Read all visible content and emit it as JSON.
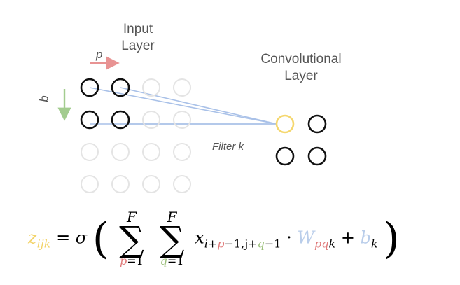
{
  "input_layer": {
    "label": "Input\nLayer",
    "grid_rows": 4,
    "grid_cols": 4,
    "active_rows": 2,
    "active_cols": 2
  },
  "conv_layer": {
    "label": "Convolutional\nLayer",
    "grid_rows": 2,
    "grid_cols": 2
  },
  "filter_label": "Filter k",
  "p_label": "p",
  "q_label": "q",
  "formula": {
    "lhs": "z",
    "lhs_sub": "ijk",
    "equals": "=",
    "sigma": "σ",
    "sum_upper": "F",
    "sum1_lower_var": "p",
    "sum2_lower_var": "q",
    "sum_lower_eq": "=1",
    "x": "x",
    "x_sub_i": "i+",
    "x_sub_p": "p",
    "x_sub_mid": "−1,j+",
    "x_sub_q": "q",
    "x_sub_end": "−1",
    "dot": "·",
    "w": "W",
    "w_sub_pq": "pq",
    "w_sub_k": "k",
    "plus": "+",
    "b": "b",
    "b_sub": "k"
  },
  "colors": {
    "active_node": "#111111",
    "inactive_node": "#e4e4e4",
    "highlight_node": "#f5d76e",
    "connection": "#a9c1e8",
    "p_arrow": "#e89393",
    "q_arrow": "#a3cc8f",
    "z_color": "#f3d46b",
    "p_color": "#e07a7a",
    "q_color": "#9bbf7a",
    "w_color": "#b9cdea",
    "b_color": "#b9cdea"
  }
}
